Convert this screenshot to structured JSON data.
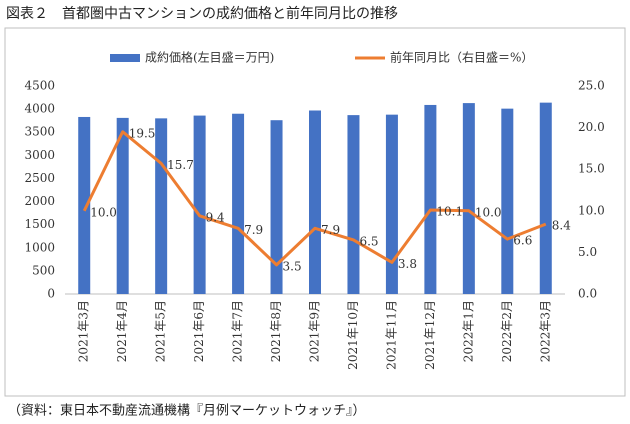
{
  "chart_data": {
    "type": "bar",
    "title": "図表２　首都圏中古マンションの成約価格と前年同月比の推移",
    "source": "（資料：東日本不動産流通機構『月例マーケットウォッチ』）",
    "categories": [
      "2021年3月",
      "2021年4月",
      "2021年5月",
      "2021年6月",
      "2021年7月",
      "2021年8月",
      "2021年9月",
      "2021年10月",
      "2021年11月",
      "2021年12月",
      "2022年1月",
      "2022年2月",
      "2022年3月"
    ],
    "series": [
      {
        "name": "成約価格(左目盛＝万円)",
        "type": "bar",
        "color": "#4472c4",
        "values": [
          3830,
          3810,
          3800,
          3860,
          3900,
          3760,
          3970,
          3870,
          3880,
          4090,
          4130,
          4010,
          4140
        ]
      },
      {
        "name": "前年同月比（右目盛＝%）",
        "type": "line",
        "color": "#ed7d31",
        "axis": "y2",
        "values": [
          10.0,
          19.5,
          15.7,
          9.4,
          7.9,
          3.5,
          7.9,
          6.5,
          3.8,
          10.1,
          10.0,
          6.6,
          8.4
        ],
        "value_labels": [
          "10.0",
          "19.5",
          "15.7",
          "9.4",
          "7.9",
          "3.5",
          "7.9",
          "6.5",
          "3.8",
          "10.1",
          "10.0",
          "6.6",
          "8.4"
        ]
      }
    ],
    "ylim": [
      0,
      4500
    ],
    "yticks": [
      0,
      500,
      1000,
      1500,
      2000,
      2500,
      3000,
      3500,
      4000,
      4500
    ],
    "y2lim": [
      0,
      25
    ],
    "y2ticks": [
      {
        "value": 0,
        "label": "0.0"
      },
      {
        "value": 5,
        "label": "5.0"
      },
      {
        "value": 10,
        "label": "10.0"
      },
      {
        "value": 15,
        "label": "15.0"
      },
      {
        "value": 20,
        "label": "20.0"
      },
      {
        "value": 25,
        "label": "25.0"
      }
    ],
    "grid": false
  }
}
